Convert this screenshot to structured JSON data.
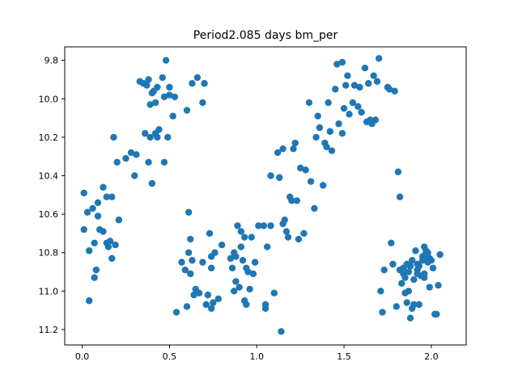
{
  "chart_data": {
    "type": "scatter",
    "title": "Period2.085 days bm_per",
    "xlabel": "",
    "ylabel": "",
    "xlim": [
      -0.1,
      2.2
    ],
    "ylim": [
      11.28,
      9.73
    ],
    "y_inverted": true,
    "grid": false,
    "xticks": [
      0.0,
      0.5,
      1.0,
      1.5,
      2.0
    ],
    "xtick_labels": [
      "0.0",
      "0.5",
      "1.0",
      "1.5",
      "2.0"
    ],
    "yticks": [
      9.8,
      10.0,
      10.2,
      10.4,
      10.6,
      10.8,
      11.0,
      11.2
    ],
    "ytick_labels": [
      "9.8",
      "10.0",
      "10.2",
      "10.4",
      "10.6",
      "10.8",
      "11.0",
      "11.2"
    ],
    "series": [
      {
        "color": "#1f77b4",
        "points": [
          [
            0.01,
            10.49
          ],
          [
            0.01,
            10.68
          ],
          [
            0.03,
            10.59
          ],
          [
            0.04,
            10.79
          ],
          [
            0.04,
            11.05
          ],
          [
            0.06,
            10.57
          ],
          [
            0.07,
            10.75
          ],
          [
            0.07,
            10.93
          ],
          [
            0.08,
            10.89
          ],
          [
            0.09,
            10.54
          ],
          [
            0.09,
            10.61
          ],
          [
            0.1,
            10.68
          ],
          [
            0.12,
            10.69
          ],
          [
            0.12,
            10.46
          ],
          [
            0.14,
            10.51
          ],
          [
            0.14,
            10.75
          ],
          [
            0.15,
            10.77
          ],
          [
            0.16,
            10.74
          ],
          [
            0.17,
            10.51
          ],
          [
            0.17,
            10.83
          ],
          [
            0.18,
            10.2
          ],
          [
            0.19,
            10.76
          ],
          [
            0.2,
            10.33
          ],
          [
            0.21,
            10.63
          ],
          [
            0.25,
            10.31
          ],
          [
            0.28,
            10.28
          ],
          [
            0.3,
            10.4
          ],
          [
            0.31,
            10.29
          ],
          [
            0.33,
            9.91
          ],
          [
            0.35,
            9.92
          ],
          [
            0.36,
            10.18
          ],
          [
            0.37,
            9.93
          ],
          [
            0.38,
            10.33
          ],
          [
            0.38,
            9.9
          ],
          [
            0.39,
            10.2
          ],
          [
            0.39,
            10.03
          ],
          [
            0.4,
            10.44
          ],
          [
            0.4,
            9.97
          ],
          [
            0.41,
            9.96
          ],
          [
            0.42,
            10.02
          ],
          [
            0.42,
            10.18
          ],
          [
            0.43,
            9.94
          ],
          [
            0.43,
            10.2
          ],
          [
            0.44,
            10.16
          ],
          [
            0.46,
            9.89
          ],
          [
            0.47,
            9.99
          ],
          [
            0.47,
            10.33
          ],
          [
            0.48,
            9.8
          ],
          [
            0.49,
            10.2
          ],
          [
            0.5,
            9.98
          ],
          [
            0.5,
            9.94
          ],
          [
            0.52,
            10.09
          ],
          [
            0.53,
            9.99
          ],
          [
            0.54,
            11.11
          ],
          [
            0.57,
            10.85
          ],
          [
            0.59,
            10.89
          ],
          [
            0.6,
            10.06
          ],
          [
            0.6,
            11.08
          ],
          [
            0.61,
            10.59
          ],
          [
            0.61,
            10.8
          ],
          [
            0.62,
            10.73
          ],
          [
            0.62,
            10.91
          ],
          [
            0.63,
            9.92
          ],
          [
            0.63,
            10.84
          ],
          [
            0.64,
            11.02
          ],
          [
            0.65,
            10.99
          ],
          [
            0.66,
            9.89
          ],
          [
            0.67,
            11.01
          ],
          [
            0.69,
            10.85
          ],
          [
            0.69,
            10.02
          ],
          [
            0.7,
            9.92
          ],
          [
            0.71,
            11.07
          ],
          [
            0.72,
            11.02
          ],
          [
            0.73,
            10.7
          ],
          [
            0.74,
            10.82
          ],
          [
            0.74,
            11.09
          ],
          [
            0.74,
            10.88
          ],
          [
            0.75,
            11.06
          ],
          [
            0.76,
            10.8
          ],
          [
            0.78,
            11.04
          ],
          [
            0.8,
            10.76
          ],
          [
            0.85,
            10.83
          ],
          [
            0.86,
            10.88
          ],
          [
            0.87,
            11.0
          ],
          [
            0.87,
            10.8
          ],
          [
            0.88,
            10.82
          ],
          [
            0.88,
            10.95
          ],
          [
            0.89,
            10.66
          ],
          [
            0.9,
            10.98
          ],
          [
            0.91,
            10.77
          ],
          [
            0.91,
            10.69
          ],
          [
            0.92,
            10.84
          ],
          [
            0.93,
            10.72
          ],
          [
            0.93,
            11.05
          ],
          [
            0.94,
            10.88
          ],
          [
            0.94,
            11.07
          ],
          [
            0.95,
            10.9
          ],
          [
            0.96,
            10.99
          ],
          [
            0.97,
            10.72
          ],
          [
            0.98,
            10.91
          ],
          [
            0.99,
            10.85
          ],
          [
            1.01,
            10.66
          ],
          [
            1.04,
            10.66
          ],
          [
            1.05,
            11.07
          ],
          [
            1.05,
            11.09
          ],
          [
            1.06,
            10.77
          ],
          [
            1.08,
            10.4
          ],
          [
            1.08,
            10.66
          ],
          [
            1.1,
            11.01
          ],
          [
            1.12,
            10.28
          ],
          [
            1.13,
            10.41
          ],
          [
            1.14,
            11.21
          ],
          [
            1.15,
            10.65
          ],
          [
            1.15,
            10.26
          ],
          [
            1.16,
            10.63
          ],
          [
            1.17,
            10.69
          ],
          [
            1.18,
            10.72
          ],
          [
            1.19,
            10.51
          ],
          [
            1.2,
            10.53
          ],
          [
            1.21,
            10.26
          ],
          [
            1.22,
            10.23
          ],
          [
            1.23,
            10.53
          ],
          [
            1.24,
            10.73
          ],
          [
            1.25,
            10.36
          ],
          [
            1.27,
            10.7
          ],
          [
            1.28,
            10.37
          ],
          [
            1.3,
            10.02
          ],
          [
            1.31,
            10.43
          ],
          [
            1.33,
            10.57
          ],
          [
            1.34,
            10.2
          ],
          [
            1.35,
            10.09
          ],
          [
            1.36,
            10.15
          ],
          [
            1.38,
            10.45
          ],
          [
            1.39,
            10.23
          ],
          [
            1.4,
            10.25
          ],
          [
            1.41,
            10.02
          ],
          [
            1.42,
            10.17
          ],
          [
            1.43,
            10.27
          ],
          [
            1.45,
            9.95
          ],
          [
            1.46,
            9.82
          ],
          [
            1.47,
            10.13
          ],
          [
            1.49,
            10.18
          ],
          [
            1.49,
            9.81
          ],
          [
            1.5,
            10.05
          ],
          [
            1.51,
            9.93
          ],
          [
            1.52,
            9.88
          ],
          [
            1.53,
            10.08
          ],
          [
            1.55,
            10.02
          ],
          [
            1.56,
            9.93
          ],
          [
            1.58,
            10.04
          ],
          [
            1.59,
            9.94
          ],
          [
            1.6,
            10.07
          ],
          [
            1.62,
            9.84
          ],
          [
            1.63,
            10.12
          ],
          [
            1.64,
            9.92
          ],
          [
            1.65,
            10.11
          ],
          [
            1.66,
            10.13
          ],
          [
            1.67,
            9.88
          ],
          [
            1.68,
            10.11
          ],
          [
            1.69,
            9.91
          ],
          [
            1.7,
            9.79
          ],
          [
            1.71,
            11.0
          ],
          [
            1.72,
            11.11
          ],
          [
            1.73,
            10.89
          ],
          [
            1.75,
            9.94
          ],
          [
            1.76,
            9.95
          ],
          [
            1.77,
            10.75
          ],
          [
            1.78,
            10.86
          ],
          [
            1.79,
            9.96
          ],
          [
            1.8,
            11.08
          ],
          [
            1.81,
            10.38
          ],
          [
            1.82,
            10.51
          ],
          [
            1.84,
            10.91
          ],
          [
            1.85,
            10.93
          ],
          [
            1.86,
            10.86
          ],
          [
            1.87,
            11.0
          ],
          [
            1.88,
            10.87
          ],
          [
            1.89,
            10.84
          ],
          [
            1.9,
            10.94
          ],
          [
            1.91,
            10.79
          ],
          [
            1.92,
            10.86
          ],
          [
            1.93,
            11.07
          ],
          [
            1.94,
            10.92
          ],
          [
            1.95,
            10.82
          ],
          [
            1.96,
            10.77
          ],
          [
            1.97,
            10.79
          ],
          [
            1.98,
            10.82
          ],
          [
            1.99,
            10.98
          ],
          [
            2.0,
            10.84
          ],
          [
            2.01,
            10.88
          ],
          [
            2.02,
            11.12
          ],
          [
            2.03,
            11.12
          ],
          [
            2.04,
            10.97
          ],
          [
            2.05,
            10.81
          ],
          [
            1.88,
            11.14
          ],
          [
            1.89,
            11.09
          ],
          [
            1.9,
            11.07
          ],
          [
            1.84,
            10.88
          ],
          [
            1.86,
            11.06
          ],
          [
            1.82,
            10.89
          ],
          [
            1.83,
            10.96
          ],
          [
            1.87,
            10.9
          ],
          [
            1.92,
            10.89
          ],
          [
            1.85,
            11.01
          ],
          [
            1.97,
            10.8
          ],
          [
            1.98,
            10.8
          ],
          [
            1.93,
            10.87
          ],
          [
            1.95,
            10.84
          ],
          [
            1.96,
            10.93
          ],
          [
            1.99,
            10.83
          ],
          [
            1.98,
            10.85
          ],
          [
            1.92,
            10.91
          ],
          [
            1.96,
            10.91
          ]
        ]
      }
    ]
  }
}
